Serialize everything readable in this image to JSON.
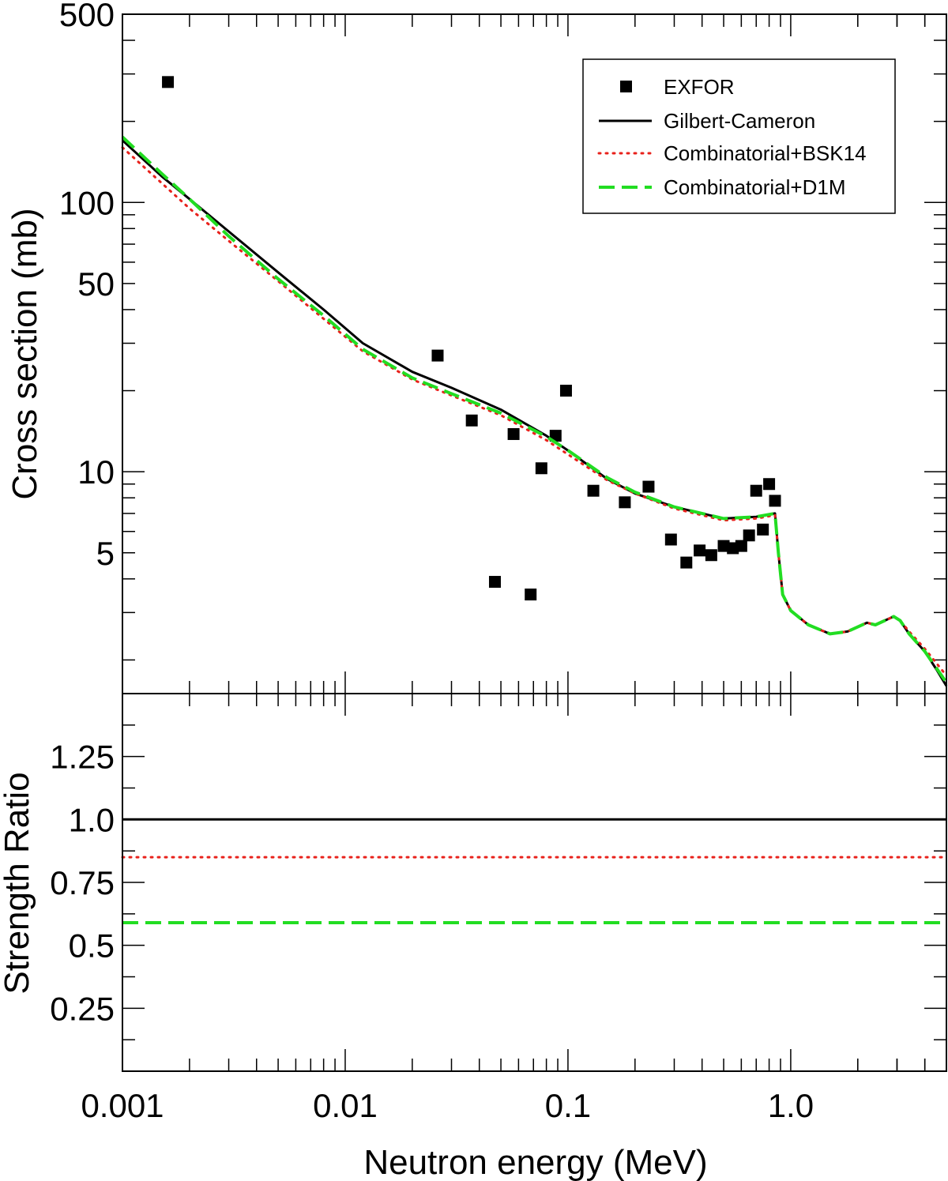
{
  "chart_data": [
    {
      "type": "scatter",
      "panel": "top",
      "xlabel": "",
      "ylabel": "Cross section (mb)",
      "x_scale": "log",
      "y_scale": "log",
      "xlim": [
        0.001,
        5.0
      ],
      "ylim": [
        1.5,
        500
      ],
      "y_tick_labels": [
        {
          "value": 500,
          "label": "500"
        },
        {
          "value": 100,
          "label": "100"
        },
        {
          "value": 50,
          "label": "50"
        },
        {
          "value": 10,
          "label": "10"
        },
        {
          "value": 5,
          "label": "5"
        }
      ],
      "legend_position": "top-right",
      "legend": [
        "EXFOR",
        "Gilbert-Cameron",
        "Combinatorial+BSK14",
        "Combinatorial+D1M"
      ],
      "series": [
        {
          "name": "EXFOR",
          "style": "markers",
          "color": "#000000",
          "x": [
            0.0016,
            0.026,
            0.037,
            0.047,
            0.057,
            0.068,
            0.076,
            0.088,
            0.098,
            0.13,
            0.18,
            0.23,
            0.29,
            0.34,
            0.39,
            0.44,
            0.5,
            0.55,
            0.6,
            0.65,
            0.7,
            0.75,
            0.8,
            0.85
          ],
          "y": [
            280,
            27,
            15.5,
            3.9,
            13.8,
            3.5,
            10.3,
            13.6,
            20,
            8.5,
            7.7,
            8.8,
            5.6,
            4.6,
            5.1,
            4.9,
            5.3,
            5.2,
            5.3,
            5.8,
            8.5,
            6.1,
            9.0,
            7.8
          ]
        },
        {
          "name": "Gilbert-Cameron",
          "style": "solid",
          "color": "#000000",
          "x": [
            0.001,
            0.0015,
            0.002,
            0.003,
            0.005,
            0.008,
            0.012,
            0.02,
            0.03,
            0.05,
            0.08,
            0.1,
            0.15,
            0.2,
            0.3,
            0.5,
            0.7,
            0.85,
            0.88,
            0.92,
            1.0,
            1.2,
            1.5,
            1.8,
            2.2,
            2.4,
            2.9,
            3.1,
            3.4,
            4.0,
            4.5,
            5.0
          ],
          "y": [
            170,
            125,
            103,
            78,
            55,
            40,
            30,
            23.5,
            20.5,
            17,
            13.6,
            12,
            9.4,
            8.3,
            7.4,
            6.7,
            6.8,
            7.0,
            5.0,
            3.5,
            3.05,
            2.7,
            2.5,
            2.55,
            2.75,
            2.7,
            2.9,
            2.8,
            2.5,
            2.15,
            1.85,
            1.6
          ]
        },
        {
          "name": "Combinatorial+BSK14",
          "style": "dotted",
          "color": "#e8211b",
          "x": [
            0.001,
            0.0015,
            0.002,
            0.003,
            0.005,
            0.008,
            0.012,
            0.02,
            0.03,
            0.05,
            0.08,
            0.1,
            0.15,
            0.2,
            0.3,
            0.5,
            0.7,
            0.85,
            0.88,
            0.92,
            1.0,
            1.2,
            1.5,
            1.8,
            2.2,
            2.4,
            2.9,
            3.1,
            3.4,
            4.0,
            4.5,
            5.0
          ],
          "y": [
            160,
            118,
            95,
            72,
            51,
            37,
            28,
            22,
            19.2,
            16.2,
            13.1,
            11.6,
            9.3,
            8.3,
            7.3,
            6.6,
            6.7,
            6.9,
            5.0,
            3.5,
            3.05,
            2.7,
            2.5,
            2.55,
            2.75,
            2.7,
            2.9,
            2.8,
            2.55,
            2.2,
            1.95,
            1.75
          ]
        },
        {
          "name": "Combinatorial+D1M",
          "style": "dashed",
          "color": "#22dd22",
          "x": [
            0.001,
            0.0015,
            0.002,
            0.003,
            0.005,
            0.008,
            0.012,
            0.02,
            0.03,
            0.05,
            0.08,
            0.1,
            0.15,
            0.2,
            0.3,
            0.5,
            0.7,
            0.85,
            0.88,
            0.92,
            1.0,
            1.2,
            1.5,
            1.8,
            2.2,
            2.4,
            2.9,
            3.1,
            3.4,
            4.0,
            4.5,
            5.0
          ],
          "y": [
            175,
            128,
            103,
            75,
            52,
            38,
            28.5,
            22.3,
            19.5,
            16.5,
            13.5,
            12,
            9.5,
            8.4,
            7.4,
            6.7,
            6.8,
            7.0,
            5.0,
            3.5,
            3.05,
            2.7,
            2.5,
            2.55,
            2.75,
            2.7,
            2.9,
            2.8,
            2.5,
            2.15,
            1.87,
            1.65
          ]
        }
      ]
    },
    {
      "type": "line",
      "panel": "bottom",
      "xlabel": "Neutron energy (MeV)",
      "ylabel": "Strength Ratio",
      "x_scale": "log",
      "xlim": [
        0.001,
        5.0
      ],
      "ylim": [
        0.0,
        1.5
      ],
      "x_tick_labels": [
        {
          "value": 0.001,
          "label": "0.001"
        },
        {
          "value": 0.01,
          "label": "0.01"
        },
        {
          "value": 0.1,
          "label": "0.1"
        },
        {
          "value": 1.0,
          "label": "1.0"
        }
      ],
      "y_tick_labels": [
        {
          "value": 1.25,
          "label": "1.25"
        },
        {
          "value": 1.0,
          "label": "1.0"
        },
        {
          "value": 0.75,
          "label": "0.75"
        },
        {
          "value": 0.5,
          "label": "0.5"
        },
        {
          "value": 0.25,
          "label": "0.25"
        }
      ],
      "series": [
        {
          "name": "Gilbert-Cameron",
          "style": "solid",
          "color": "#000000",
          "x": [
            0.001,
            5.0
          ],
          "y": [
            1.0,
            1.0
          ]
        },
        {
          "name": "Combinatorial+BSK14",
          "style": "dotted",
          "color": "#e8211b",
          "x": [
            0.001,
            5.0
          ],
          "y": [
            0.85,
            0.85
          ]
        },
        {
          "name": "Combinatorial+D1M",
          "style": "dashed",
          "color": "#22dd22",
          "x": [
            0.001,
            5.0
          ],
          "y": [
            0.59,
            0.59
          ]
        }
      ]
    }
  ]
}
